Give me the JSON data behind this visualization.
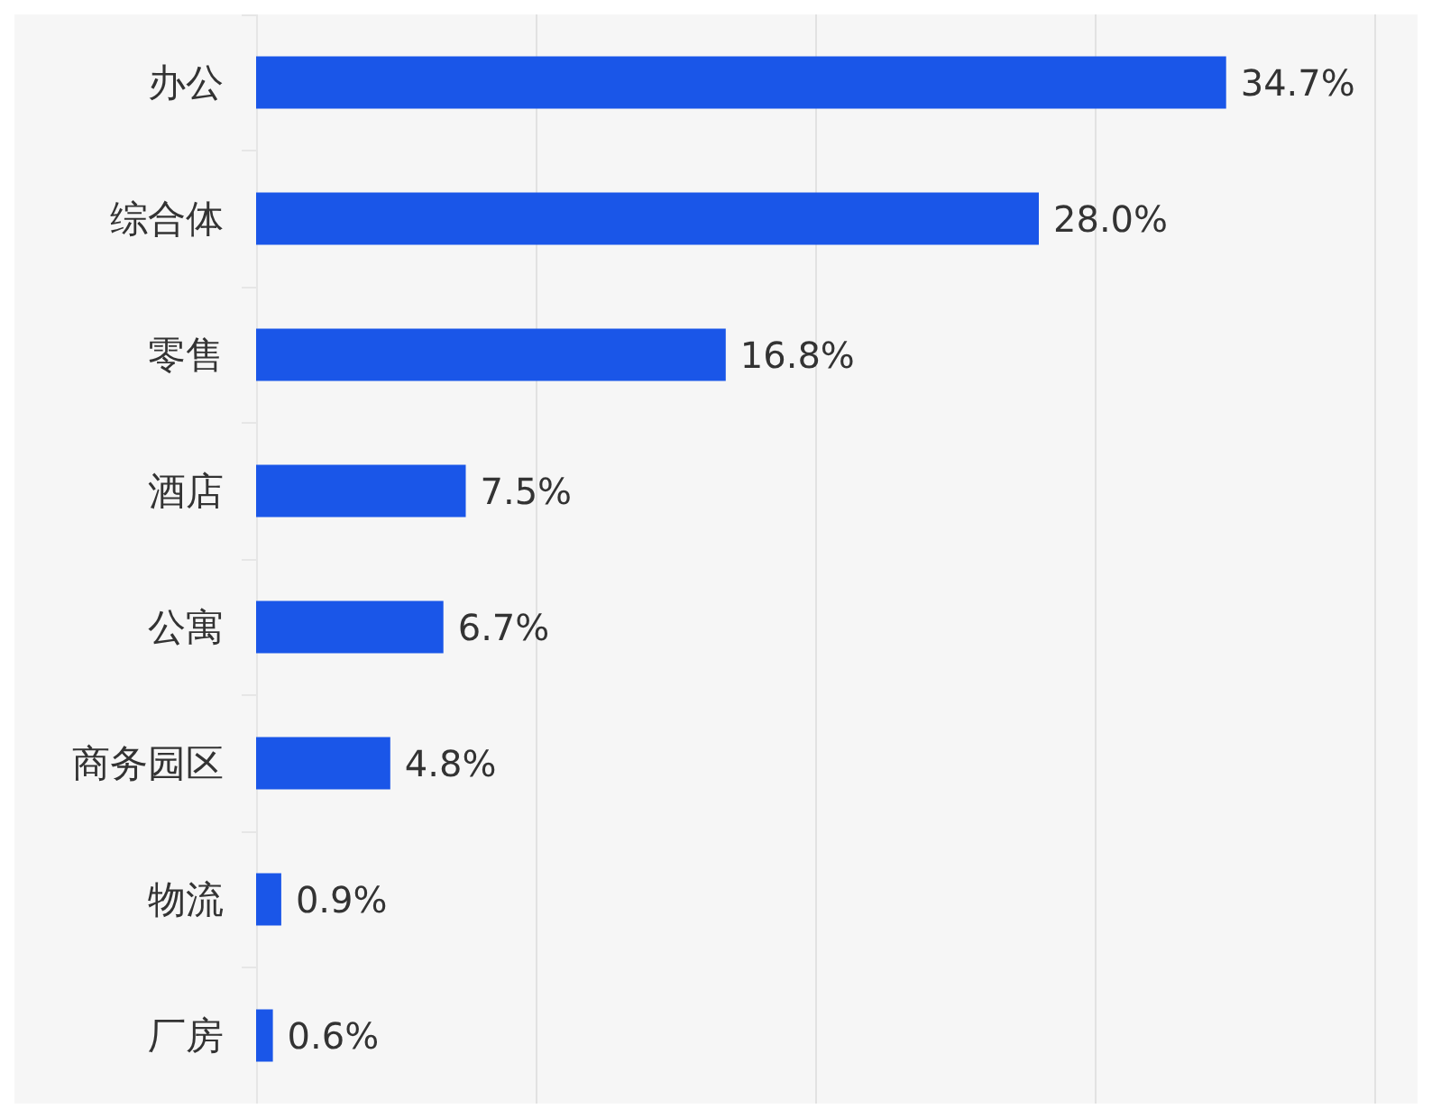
{
  "chart_data": {
    "type": "bar",
    "orientation": "horizontal",
    "categories": [
      "办公",
      "综合体",
      "零售",
      "酒店",
      "公寓",
      "商务园区",
      "物流",
      "厂房"
    ],
    "values": [
      34.7,
      28.0,
      16.8,
      7.5,
      6.7,
      4.8,
      0.9,
      0.6
    ],
    "value_labels": [
      "34.7%",
      "28.0%",
      "16.8%",
      "7.5%",
      "6.7%",
      "4.8%",
      "0.9%",
      "0.6%"
    ],
    "color": "#1a56e8",
    "xlim": [
      0,
      40
    ],
    "grid": "x",
    "tick_labels": "y"
  }
}
